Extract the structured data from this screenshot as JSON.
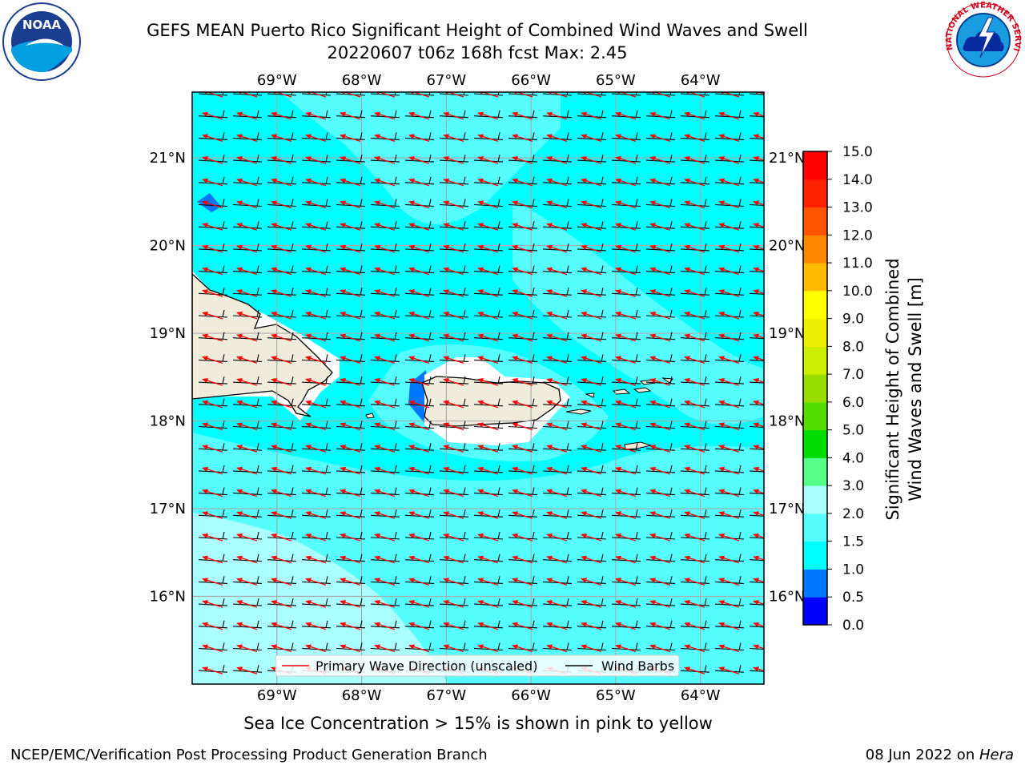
{
  "header": {
    "title_line1": "GEFS MEAN Puerto Rico Significant Height of Combined Wind Waves and Swell",
    "title_line2": "20220607 t06z 168h fcst   Max: 2.45"
  },
  "logos": {
    "noaa_text": "NOAA",
    "nws_ring_text": "NATIONAL WEATHER SERVICE"
  },
  "map": {
    "lon_labels": [
      "69°W",
      "68°W",
      "67°W",
      "66°W",
      "65°W",
      "64°W"
    ],
    "lat_labels": [
      "21°N",
      "20°N",
      "19°N",
      "18°N",
      "17°N",
      "16°N"
    ],
    "lon_values": [
      -69,
      -68,
      -67,
      -66,
      -65,
      -64
    ],
    "lat_values": [
      21,
      20,
      19,
      18,
      17,
      16
    ],
    "lon_range": [
      -70,
      -63.25
    ],
    "lat_range": [
      15,
      21.75
    ],
    "colors": {
      "ocean_main": "#00ffff",
      "ocean_light": "#55ffff",
      "ocean_lighter": "#aaffff",
      "land": "#efecdc",
      "wave_arrow": "#ff0000",
      "wind_barb": "#000000",
      "patch_blue": "#0077ff"
    }
  },
  "legend": {
    "items": [
      {
        "label": "Primary Wave Direction (unscaled)",
        "color": "#ff0000"
      },
      {
        "label": "Wind Barbs",
        "color": "#000000"
      }
    ]
  },
  "colorbar": {
    "label_line1": "Significant Height of Combined",
    "label_line2": "Wind Waves and Swell [m]",
    "ticks": [
      "0.0",
      "0.5",
      "1.0",
      "1.5",
      "2.0",
      "3.0",
      "4.0",
      "5.0",
      "6.0",
      "7.0",
      "8.0",
      "9.0",
      "10.0",
      "11.0",
      "12.0",
      "13.0",
      "14.0",
      "15.0"
    ],
    "colors": [
      "#0000ff",
      "#0077ff",
      "#00ffff",
      "#55ffff",
      "#aaffff",
      "#55ff88",
      "#00dd00",
      "#55dd00",
      "#99dd00",
      "#ccee00",
      "#eeee00",
      "#ffff00",
      "#ffbb00",
      "#ff8800",
      "#ff5500",
      "#ff2200",
      "#ff0000"
    ]
  },
  "bottom_note": "Sea Ice Concentration > 15% is shown in pink to yellow",
  "footer": {
    "left": "NCEP/EMC/Verification Post Processing Product Generation Branch",
    "right_prefix": "08 Jun 2022 on ",
    "right_machine": "Hera"
  }
}
